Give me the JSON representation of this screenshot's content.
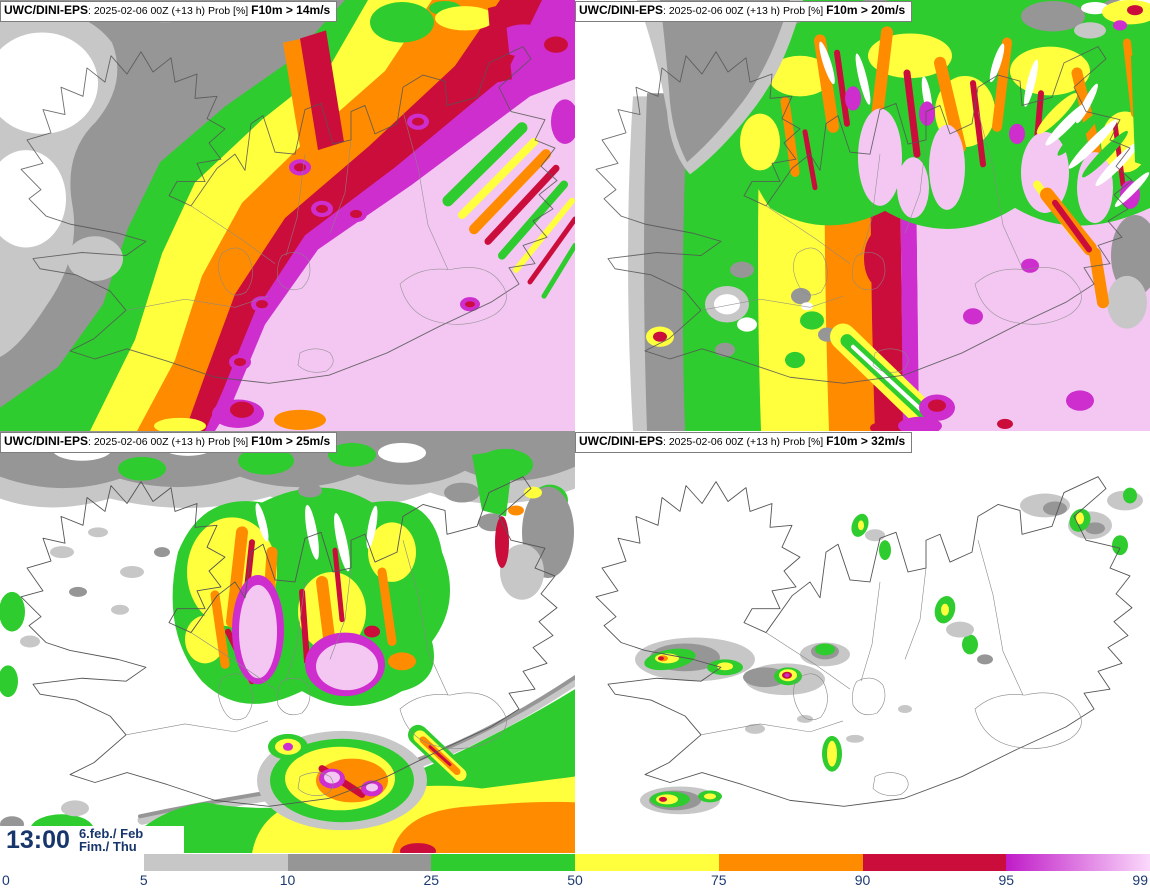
{
  "panels": [
    {
      "model": "UWC/DINI-EPS",
      "colon": ":",
      "info": "2025-02-06 00Z (+13 h) Prob [%]",
      "threshold": "F10m > 14m/s"
    },
    {
      "model": "UWC/DINI-EPS",
      "colon": ":",
      "info": "2025-02-06 00Z (+13 h) Prob [%]",
      "threshold": "F10m > 20m/s"
    },
    {
      "model": "UWC/DINI-EPS",
      "colon": ":",
      "info": "2025-02-06 00Z (+13 h) Prob [%]",
      "threshold": "F10m > 25m/s"
    },
    {
      "model": "UWC/DINI-EPS",
      "colon": ":",
      "info": "2025-02-06 00Z (+13 h) Prob [%]",
      "threshold": "F10m > 32m/s"
    }
  ],
  "footer": {
    "time": "13:00",
    "date_primary": "6.feb./ Feb",
    "date_secondary": "Fim./ Thu"
  },
  "colorbar": {
    "ticks": [
      "0",
      "5",
      "10",
      "25",
      "50",
      "75",
      "90",
      "95",
      "99"
    ],
    "segments": [
      {
        "range": "0-5",
        "color": "#ffffff"
      },
      {
        "range": "5-10",
        "color": "#c7c7c7"
      },
      {
        "range": "10-25",
        "color": "#969696"
      },
      {
        "range": "25-50",
        "color": "#2ecc2e"
      },
      {
        "range": "50-75",
        "color": "#ffff3e"
      },
      {
        "range": "75-90",
        "color": "#ff8c00"
      },
      {
        "range": "90-95",
        "color": "#cb0d3c"
      },
      {
        "range": "95-99",
        "color": "#c01cc8",
        "gradient_to": "#fbd9fb"
      }
    ],
    "text_color": "#1c3a72"
  }
}
